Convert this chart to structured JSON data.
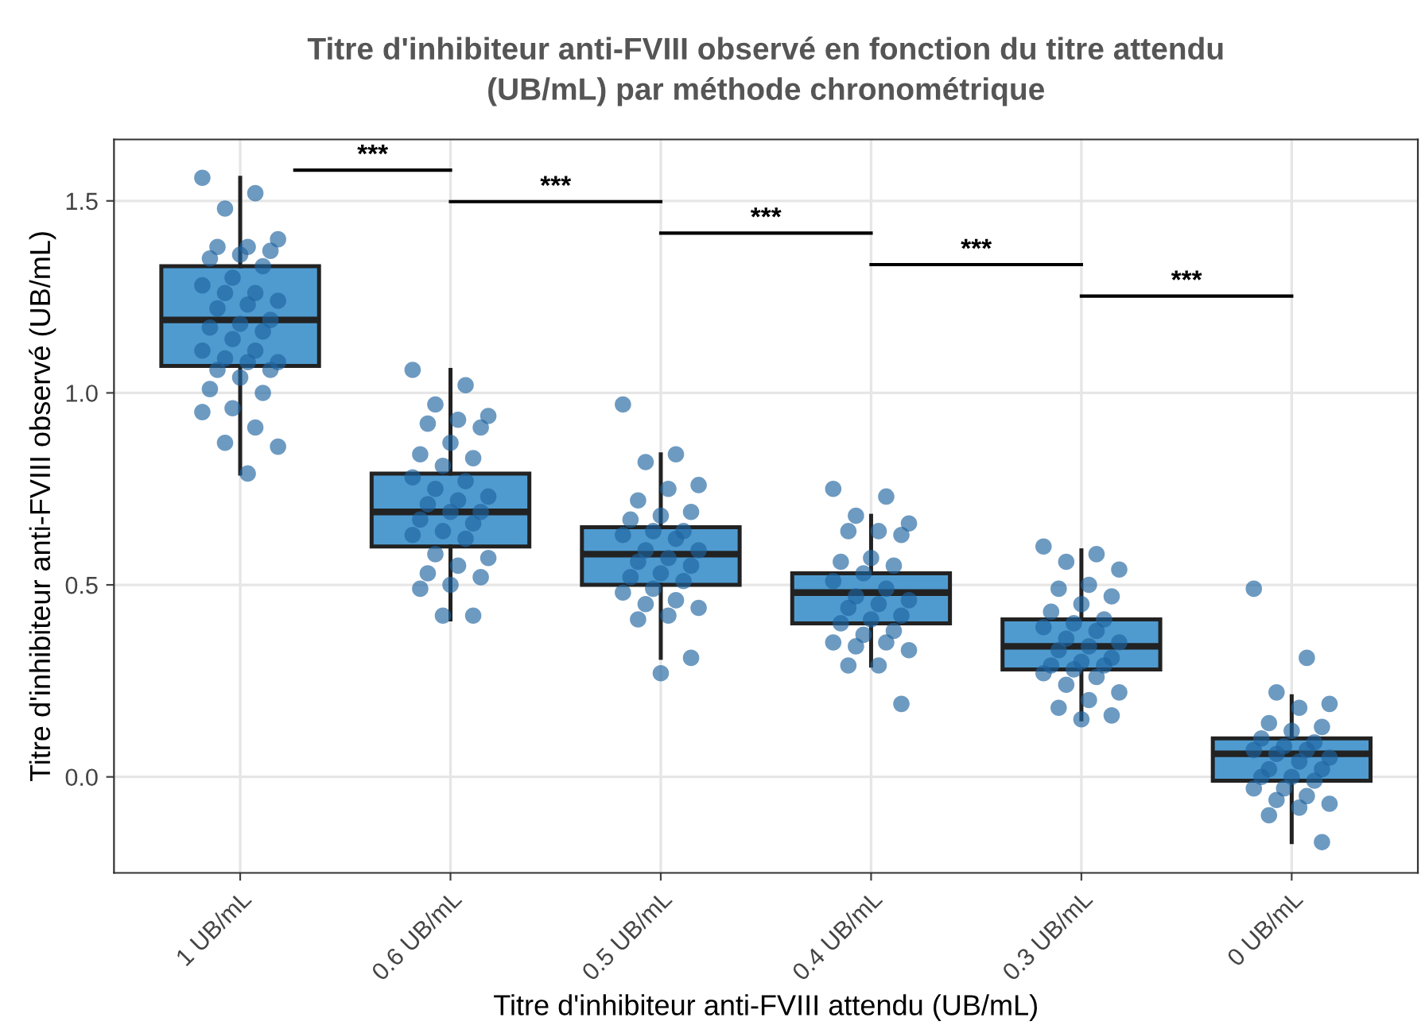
{
  "chart_data": {
    "type": "box",
    "title": "Titre d'inhibiteur anti-FVIII observé en fonction du titre attendu\n(UB/mL) par méthode chronométrique",
    "xlabel": "Titre d'inhibiteur anti-FVIII attendu (UB/mL)",
    "ylabel": "Titre d'inhibiteur anti-FVIII observé (UB/mL)",
    "categories": [
      "1 UB/mL",
      "0.6 UB/mL",
      "0.5 UB/mL",
      "0.4 UB/mL",
      "0.3 UB/mL",
      "0 UB/mL"
    ],
    "ylim": [
      -0.25,
      1.66
    ],
    "yticks": [
      {
        "value": 0,
        "label": "0.0"
      },
      0.5,
      {
        "value": 1,
        "label": "1.0"
      },
      1.5
    ],
    "grid": true,
    "annotations": [
      "***",
      "***",
      "***",
      "***",
      "***"
    ],
    "series": [
      {
        "color": "#4f9bd0",
        "boxes": [
          {
            "low": 0.79,
            "q1": 1.07,
            "median": 1.19,
            "q3": 1.33,
            "high": 1.56
          },
          {
            "low": 0.41,
            "q1": 0.6,
            "median": 0.69,
            "q3": 0.79,
            "high": 1.06
          },
          {
            "low": 0.31,
            "q1": 0.5,
            "median": 0.58,
            "q3": 0.65,
            "high": 0.84
          },
          {
            "low": 0.29,
            "q1": 0.4,
            "median": 0.48,
            "q3": 0.53,
            "high": 0.68
          },
          {
            "low": 0.15,
            "q1": 0.28,
            "median": 0.34,
            "q3": 0.41,
            "high": 0.59
          },
          {
            "low": -0.17,
            "q1": -0.01,
            "median": 0.06,
            "q3": 0.1,
            "high": 0.21
          }
        ]
      },
      {
        "type": "scatter",
        "color": "#1f64a0",
        "x": [
          "1 UB/mL",
          "1 UB/mL",
          "1 UB/mL",
          "1 UB/mL",
          "1 UB/mL",
          "1 UB/mL",
          "1 UB/mL",
          "1 UB/mL",
          "1 UB/mL",
          "1 UB/mL",
          "1 UB/mL",
          "1 UB/mL",
          "1 UB/mL",
          "1 UB/mL",
          "1 UB/mL",
          "1 UB/mL",
          "1 UB/mL",
          "1 UB/mL",
          "1 UB/mL",
          "1 UB/mL",
          "1 UB/mL",
          "1 UB/mL",
          "1 UB/mL",
          "1 UB/mL",
          "1 UB/mL",
          "1 UB/mL",
          "1 UB/mL",
          "1 UB/mL",
          "1 UB/mL",
          "1 UB/mL",
          "1 UB/mL",
          "1 UB/mL",
          "1 UB/mL",
          "1 UB/mL",
          "1 UB/mL",
          "1 UB/mL",
          "1 UB/mL",
          "1 UB/mL"
        ],
        "values": [
          1.56,
          1.52,
          1.48,
          1.4,
          1.38,
          1.38,
          1.37,
          1.36,
          1.35,
          1.33,
          1.3,
          1.28,
          1.26,
          1.26,
          1.24,
          1.23,
          1.22,
          1.19,
          1.18,
          1.17,
          1.16,
          1.14,
          1.11,
          1.11,
          1.09,
          1.08,
          1.08,
          1.06,
          1.06,
          1.04,
          1.01,
          1.0,
          0.96,
          0.95,
          0.91,
          0.87,
          0.86,
          0.79
        ]
      },
      {
        "type": "scatter",
        "color": "#1f64a0",
        "x": [
          "0.6 UB/mL",
          "0.6 UB/mL",
          "0.6 UB/mL",
          "0.6 UB/mL",
          "0.6 UB/mL",
          "0.6 UB/mL",
          "0.6 UB/mL",
          "0.6 UB/mL",
          "0.6 UB/mL",
          "0.6 UB/mL",
          "0.6 UB/mL",
          "0.6 UB/mL",
          "0.6 UB/mL",
          "0.6 UB/mL",
          "0.6 UB/mL",
          "0.6 UB/mL",
          "0.6 UB/mL",
          "0.6 UB/mL",
          "0.6 UB/mL",
          "0.6 UB/mL",
          "0.6 UB/mL",
          "0.6 UB/mL",
          "0.6 UB/mL",
          "0.6 UB/mL",
          "0.6 UB/mL",
          "0.6 UB/mL",
          "0.6 UB/mL",
          "0.6 UB/mL",
          "0.6 UB/mL",
          "0.6 UB/mL",
          "0.6 UB/mL",
          "0.6 UB/mL",
          "0.6 UB/mL"
        ],
        "values": [
          1.06,
          1.02,
          0.97,
          0.94,
          0.93,
          0.92,
          0.91,
          0.87,
          0.84,
          0.83,
          0.81,
          0.78,
          0.77,
          0.75,
          0.73,
          0.72,
          0.71,
          0.69,
          0.69,
          0.67,
          0.66,
          0.64,
          0.63,
          0.62,
          0.58,
          0.57,
          0.55,
          0.53,
          0.52,
          0.5,
          0.49,
          0.42,
          0.42
        ]
      },
      {
        "type": "scatter",
        "color": "#1f64a0",
        "x": [
          "0.5 UB/mL",
          "0.5 UB/mL",
          "0.5 UB/mL",
          "0.5 UB/mL",
          "0.5 UB/mL",
          "0.5 UB/mL",
          "0.5 UB/mL",
          "0.5 UB/mL",
          "0.5 UB/mL",
          "0.5 UB/mL",
          "0.5 UB/mL",
          "0.5 UB/mL",
          "0.5 UB/mL",
          "0.5 UB/mL",
          "0.5 UB/mL",
          "0.5 UB/mL",
          "0.5 UB/mL",
          "0.5 UB/mL",
          "0.5 UB/mL",
          "0.5 UB/mL",
          "0.5 UB/mL",
          "0.5 UB/mL",
          "0.5 UB/mL",
          "0.5 UB/mL",
          "0.5 UB/mL",
          "0.5 UB/mL",
          "0.5 UB/mL",
          "0.5 UB/mL",
          "0.5 UB/mL",
          "0.5 UB/mL"
        ],
        "values": [
          0.97,
          0.84,
          0.82,
          0.76,
          0.75,
          0.72,
          0.69,
          0.68,
          0.67,
          0.64,
          0.64,
          0.63,
          0.62,
          0.59,
          0.59,
          0.57,
          0.56,
          0.55,
          0.53,
          0.52,
          0.51,
          0.49,
          0.48,
          0.46,
          0.45,
          0.44,
          0.42,
          0.41,
          0.31,
          0.27
        ]
      },
      {
        "type": "scatter",
        "color": "#1f64a0",
        "x": [
          "0.4 UB/mL",
          "0.4 UB/mL",
          "0.4 UB/mL",
          "0.4 UB/mL",
          "0.4 UB/mL",
          "0.4 UB/mL",
          "0.4 UB/mL",
          "0.4 UB/mL",
          "0.4 UB/mL",
          "0.4 UB/mL",
          "0.4 UB/mL",
          "0.4 UB/mL",
          "0.4 UB/mL",
          "0.4 UB/mL",
          "0.4 UB/mL",
          "0.4 UB/mL",
          "0.4 UB/mL",
          "0.4 UB/mL",
          "0.4 UB/mL",
          "0.4 UB/mL",
          "0.4 UB/mL",
          "0.4 UB/mL",
          "0.4 UB/mL",
          "0.4 UB/mL",
          "0.4 UB/mL",
          "0.4 UB/mL",
          "0.4 UB/mL",
          "0.4 UB/mL",
          "0.4 UB/mL"
        ],
        "values": [
          0.75,
          0.73,
          0.68,
          0.66,
          0.64,
          0.64,
          0.63,
          0.57,
          0.56,
          0.55,
          0.53,
          0.51,
          0.49,
          0.47,
          0.46,
          0.45,
          0.44,
          0.42,
          0.41,
          0.4,
          0.38,
          0.37,
          0.35,
          0.35,
          0.34,
          0.33,
          0.29,
          0.29,
          0.19
        ]
      },
      {
        "type": "scatter",
        "color": "#1f64a0",
        "x": [
          "0.3 UB/mL",
          "0.3 UB/mL",
          "0.3 UB/mL",
          "0.3 UB/mL",
          "0.3 UB/mL",
          "0.3 UB/mL",
          "0.3 UB/mL",
          "0.3 UB/mL",
          "0.3 UB/mL",
          "0.3 UB/mL",
          "0.3 UB/mL",
          "0.3 UB/mL",
          "0.3 UB/mL",
          "0.3 UB/mL",
          "0.3 UB/mL",
          "0.3 UB/mL",
          "0.3 UB/mL",
          "0.3 UB/mL",
          "0.3 UB/mL",
          "0.3 UB/mL",
          "0.3 UB/mL",
          "0.3 UB/mL",
          "0.3 UB/mL",
          "0.3 UB/mL",
          "0.3 UB/mL",
          "0.3 UB/mL",
          "0.3 UB/mL",
          "0.3 UB/mL",
          "0.3 UB/mL",
          "0.3 UB/mL"
        ],
        "values": [
          0.6,
          0.58,
          0.56,
          0.54,
          0.5,
          0.49,
          0.47,
          0.45,
          0.43,
          0.41,
          0.4,
          0.39,
          0.38,
          0.36,
          0.35,
          0.34,
          0.33,
          0.31,
          0.3,
          0.29,
          0.29,
          0.28,
          0.27,
          0.26,
          0.24,
          0.22,
          0.2,
          0.18,
          0.16,
          0.15
        ]
      },
      {
        "type": "scatter",
        "color": "#1f64a0",
        "x": [
          "0 UB/mL",
          "0 UB/mL",
          "0 UB/mL",
          "0 UB/mL",
          "0 UB/mL",
          "0 UB/mL",
          "0 UB/mL",
          "0 UB/mL",
          "0 UB/mL",
          "0 UB/mL",
          "0 UB/mL",
          "0 UB/mL",
          "0 UB/mL",
          "0 UB/mL",
          "0 UB/mL",
          "0 UB/mL",
          "0 UB/mL",
          "0 UB/mL",
          "0 UB/mL",
          "0 UB/mL",
          "0 UB/mL",
          "0 UB/mL",
          "0 UB/mL",
          "0 UB/mL",
          "0 UB/mL",
          "0 UB/mL",
          "0 UB/mL",
          "0 UB/mL",
          "0 UB/mL"
        ],
        "values": [
          0.49,
          0.31,
          0.22,
          0.19,
          0.18,
          0.14,
          0.13,
          0.12,
          0.1,
          0.09,
          0.08,
          0.07,
          0.07,
          0.06,
          0.05,
          0.04,
          0.02,
          0.02,
          0.0,
          0.0,
          -0.01,
          -0.03,
          -0.03,
          -0.05,
          -0.06,
          -0.07,
          -0.08,
          -0.1,
          -0.17
        ]
      }
    ]
  }
}
